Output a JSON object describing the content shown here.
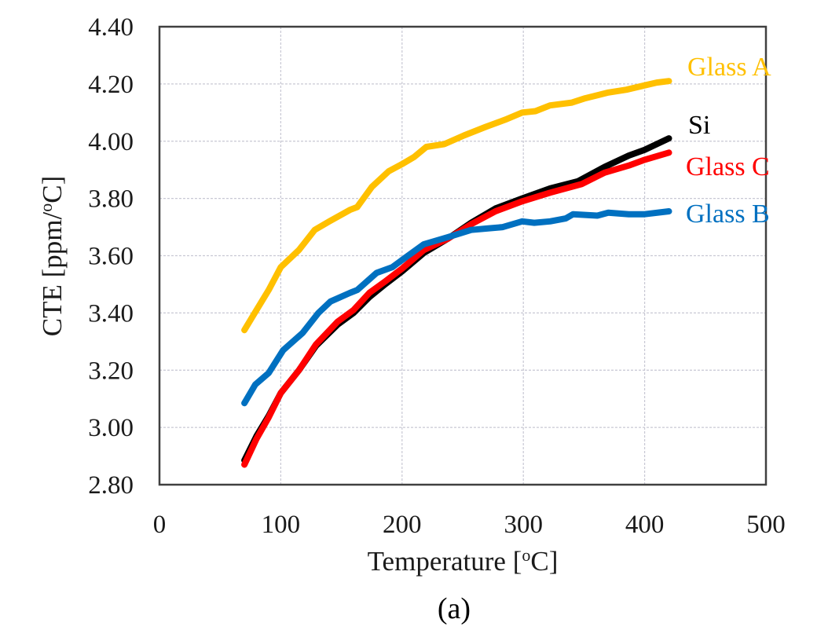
{
  "chart_data": {
    "type": "line",
    "title": "",
    "caption": "(a)",
    "xlabel": "Temperature  [",
    "xlabel_sup": "o",
    "xlabel_end": "C]",
    "ylabel": "CTE [ppm/",
    "ylabel_sup": "o",
    "ylabel_end": "C]",
    "xlim": [
      0,
      500
    ],
    "ylim": [
      2.8,
      4.4
    ],
    "xticks": [
      0,
      100,
      200,
      300,
      400,
      500
    ],
    "xtick_labels": [
      "0",
      "100",
      "200",
      "300",
      "400",
      "500"
    ],
    "yticks": [
      2.8,
      3.0,
      3.2,
      3.4,
      3.6,
      3.8,
      4.0,
      4.2,
      4.4
    ],
    "ytick_labels": [
      "2.80",
      "3.00",
      "3.20",
      "3.40",
      "3.60",
      "3.80",
      "4.00",
      "4.20",
      "4.40"
    ],
    "grid": true,
    "legend": "inline labels at right end of each series",
    "series": [
      {
        "name": "Glass A",
        "color": "#FFC000",
        "x": [
          70,
          80,
          90,
          100,
          115,
          128,
          140,
          157,
          163,
          175,
          189,
          200,
          210,
          220,
          235,
          251,
          269,
          285,
          299,
          310,
          322,
          340,
          351,
          370,
          385,
          400,
          410,
          420
        ],
        "y": [
          3.34,
          3.41,
          3.48,
          3.56,
          3.62,
          3.69,
          3.72,
          3.76,
          3.77,
          3.84,
          3.895,
          3.92,
          3.945,
          3.98,
          3.99,
          4.02,
          4.05,
          4.075,
          4.1,
          4.105,
          4.125,
          4.135,
          4.15,
          4.17,
          4.18,
          4.195,
          4.205,
          4.21
        ]
      },
      {
        "name": "Si",
        "color": "#000000",
        "x": [
          70,
          80,
          90,
          100,
          115,
          129,
          147,
          160,
          173,
          186,
          200,
          218,
          238,
          257,
          277,
          299,
          322,
          345,
          367,
          387,
          400,
          420
        ],
        "y": [
          2.885,
          2.97,
          3.04,
          3.12,
          3.2,
          3.285,
          3.36,
          3.4,
          3.455,
          3.5,
          3.545,
          3.61,
          3.66,
          3.715,
          3.765,
          3.8,
          3.835,
          3.86,
          3.91,
          3.95,
          3.97,
          4.01
        ]
      },
      {
        "name": "Glass C",
        "color": "#FF0000",
        "x": [
          70,
          80,
          90,
          100,
          115,
          129,
          147,
          160,
          173,
          186,
          200,
          218,
          238,
          257,
          277,
          299,
          322,
          348,
          367,
          387,
          400,
          420
        ],
        "y": [
          2.87,
          2.96,
          3.035,
          3.12,
          3.2,
          3.29,
          3.37,
          3.41,
          3.47,
          3.51,
          3.555,
          3.62,
          3.66,
          3.71,
          3.755,
          3.79,
          3.82,
          3.85,
          3.89,
          3.915,
          3.935,
          3.96
        ]
      },
      {
        "name": "Glass B",
        "color": "#0070C0",
        "x": [
          70,
          79,
          90,
          102,
          118,
          131,
          141,
          157,
          163,
          179,
          192,
          200,
          218,
          238,
          257,
          270,
          283,
          299,
          309,
          322,
          335,
          341,
          361,
          370,
          387,
          400,
          420
        ],
        "y": [
          3.085,
          3.15,
          3.19,
          3.27,
          3.33,
          3.4,
          3.44,
          3.47,
          3.48,
          3.54,
          3.56,
          3.585,
          3.64,
          3.665,
          3.69,
          3.695,
          3.7,
          3.72,
          3.715,
          3.72,
          3.73,
          3.745,
          3.74,
          3.75,
          3.745,
          3.745,
          3.755
        ]
      }
    ]
  }
}
